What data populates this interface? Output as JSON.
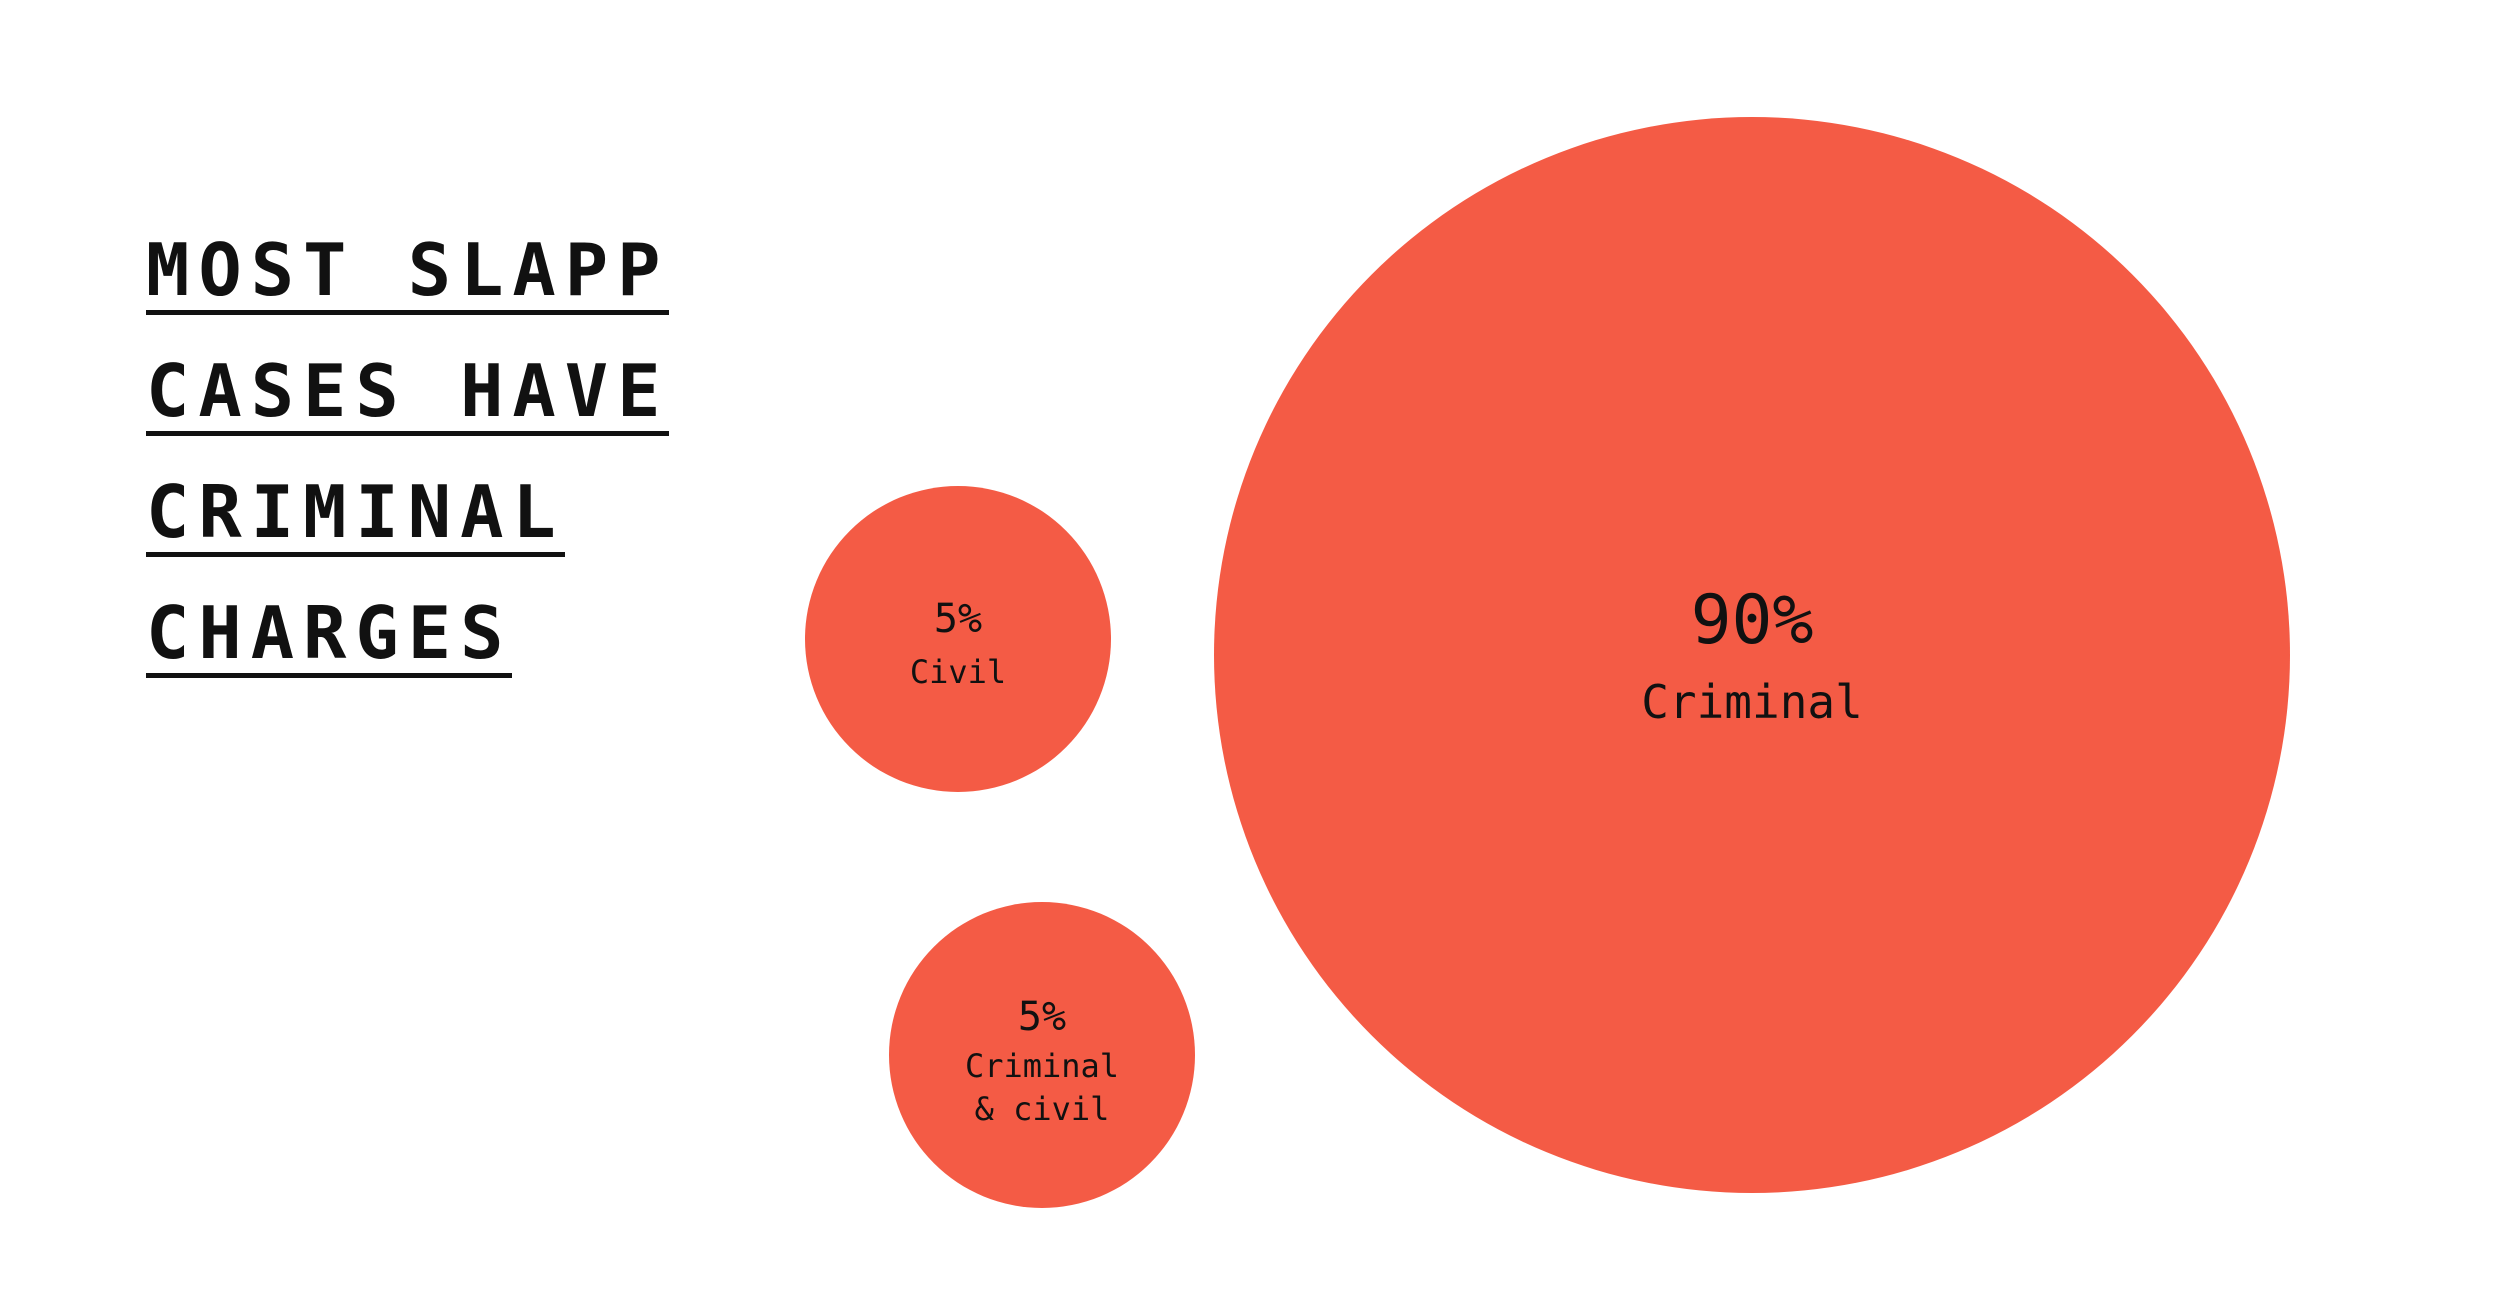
{
  "chart_data": {
    "type": "bubble",
    "title_lines": [
      "MOST SLAPP",
      "CASES HAVE",
      "CRIMINAL",
      "CHARGES"
    ],
    "color": "#F45B45",
    "bubbles": [
      {
        "value_label": "90%",
        "value": 90,
        "label_lines": [
          "Criminal"
        ]
      },
      {
        "value_label": "5%",
        "value": 5,
        "label_lines": [
          "Civil"
        ]
      },
      {
        "value_label": "5%",
        "value": 5,
        "label_lines": [
          "Criminal",
          "& civil"
        ]
      }
    ]
  }
}
